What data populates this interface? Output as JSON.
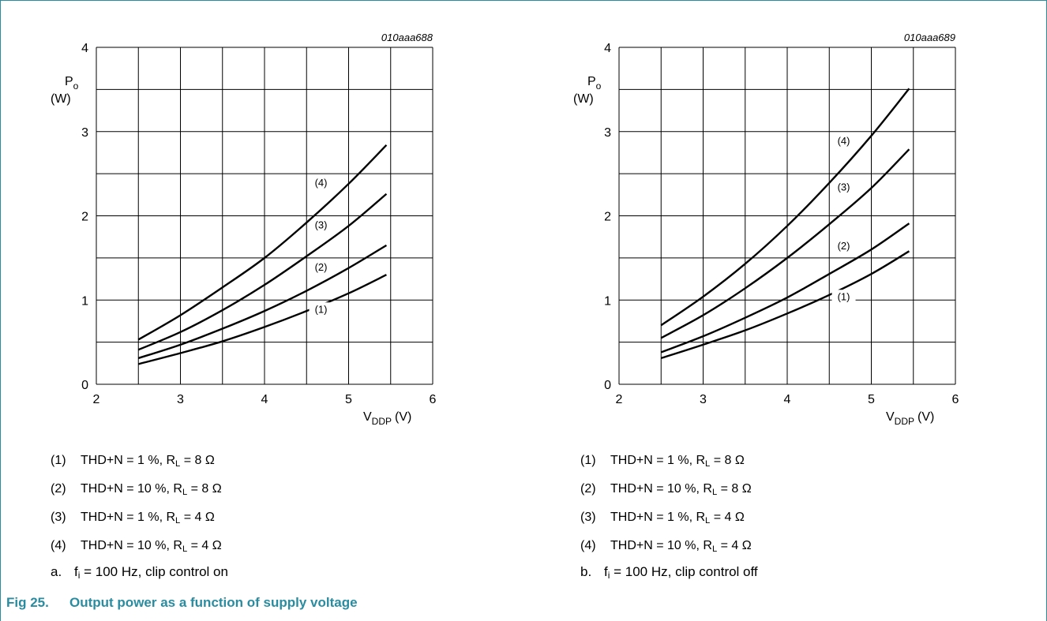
{
  "figure": {
    "number": "Fig 25.",
    "title": "Output power as a function of supply voltage"
  },
  "chart_data": [
    {
      "type": "line",
      "id_label": "010aaa688",
      "ylabel_top": "P",
      "ylabel_sub": "o",
      "ylabel_unit": "(W)",
      "xlabel_main": "V",
      "xlabel_sub": "DDP",
      "xlabel_unit": "(V)",
      "xlim": [
        2,
        6
      ],
      "ylim": [
        0,
        4
      ],
      "xticks": [
        "2",
        "3",
        "4",
        "5",
        "6"
      ],
      "yticks": [
        "0",
        "1",
        "2",
        "3",
        "4"
      ],
      "grid": true,
      "x": [
        2.5,
        3.0,
        3.5,
        4.0,
        4.5,
        5.0,
        5.45
      ],
      "series": [
        {
          "label": "(1)",
          "label_pos": [
            4.7,
            0.85
          ],
          "values": [
            0.24,
            0.37,
            0.51,
            0.68,
            0.87,
            1.08,
            1.3
          ]
        },
        {
          "label": "(2)",
          "label_pos": [
            4.7,
            1.35
          ],
          "values": [
            0.31,
            0.47,
            0.66,
            0.87,
            1.11,
            1.38,
            1.65
          ]
        },
        {
          "label": "(3)",
          "label_pos": [
            4.7,
            1.85
          ],
          "values": [
            0.41,
            0.62,
            0.88,
            1.18,
            1.52,
            1.88,
            2.26
          ]
        },
        {
          "label": "(4)",
          "label_pos": [
            4.7,
            2.35
          ],
          "values": [
            0.53,
            0.82,
            1.15,
            1.5,
            1.92,
            2.38,
            2.84
          ]
        }
      ],
      "legend": [
        {
          "num": "(1)",
          "text": "THD+N  = 1 %, R",
          "sub": "L",
          "tail": " = 8 Ω"
        },
        {
          "num": "(2)",
          "text": "THD+N  = 10 %, R",
          "sub": "L",
          "tail": " = 8 Ω"
        },
        {
          "num": "(3)",
          "text": "THD+N  = 1 %, R",
          "sub": "L",
          "tail": " = 4 Ω"
        },
        {
          "num": "(4)",
          "text": "THD+N  = 10 %, R",
          "sub": "L",
          "tail": " = 4 Ω"
        }
      ],
      "caption": {
        "tag": "a.",
        "pre": "f",
        "sub": "i",
        "text": " = 100 Hz, clip control on"
      }
    },
    {
      "type": "line",
      "id_label": "010aaa689",
      "ylabel_top": "P",
      "ylabel_sub": "o",
      "ylabel_unit": "(W)",
      "xlabel_main": "V",
      "xlabel_sub": "DDP",
      "xlabel_unit": "(V)",
      "xlim": [
        2,
        6
      ],
      "ylim": [
        0,
        4
      ],
      "xticks": [
        "2",
        "3",
        "4",
        "5",
        "6"
      ],
      "yticks": [
        "0",
        "1",
        "2",
        "3",
        "4"
      ],
      "grid": true,
      "x": [
        2.5,
        3.0,
        3.5,
        4.0,
        4.5,
        5.0,
        5.45
      ],
      "series": [
        {
          "label": "(1)",
          "label_pos": [
            4.7,
            1.0
          ],
          "values": [
            0.31,
            0.47,
            0.64,
            0.84,
            1.06,
            1.31,
            1.58
          ]
        },
        {
          "label": "(2)",
          "label_pos": [
            4.7,
            1.6
          ],
          "values": [
            0.38,
            0.57,
            0.79,
            1.03,
            1.31,
            1.6,
            1.91
          ]
        },
        {
          "label": "(3)",
          "label_pos": [
            4.7,
            2.3
          ],
          "values": [
            0.55,
            0.82,
            1.14,
            1.5,
            1.9,
            2.33,
            2.79
          ]
        },
        {
          "label": "(4)",
          "label_pos": [
            4.7,
            2.85
          ],
          "values": [
            0.7,
            1.04,
            1.43,
            1.88,
            2.39,
            2.95,
            3.51
          ]
        }
      ],
      "legend": [
        {
          "num": "(1)",
          "text": "THD+N  = 1 %, R",
          "sub": "L",
          "tail": " = 8 Ω"
        },
        {
          "num": "(2)",
          "text": "THD+N  = 10 %, R",
          "sub": "L",
          "tail": " = 8 Ω"
        },
        {
          "num": "(3)",
          "text": "THD+N  = 1 %, R",
          "sub": "L",
          "tail": " = 4 Ω"
        },
        {
          "num": "(4)",
          "text": "THD+N  = 10 %, R",
          "sub": "L",
          "tail": " = 4 Ω"
        }
      ],
      "caption": {
        "tag": "b.",
        "pre": "f",
        "sub": "i",
        "text": " = 100 Hz, clip control off"
      }
    }
  ]
}
